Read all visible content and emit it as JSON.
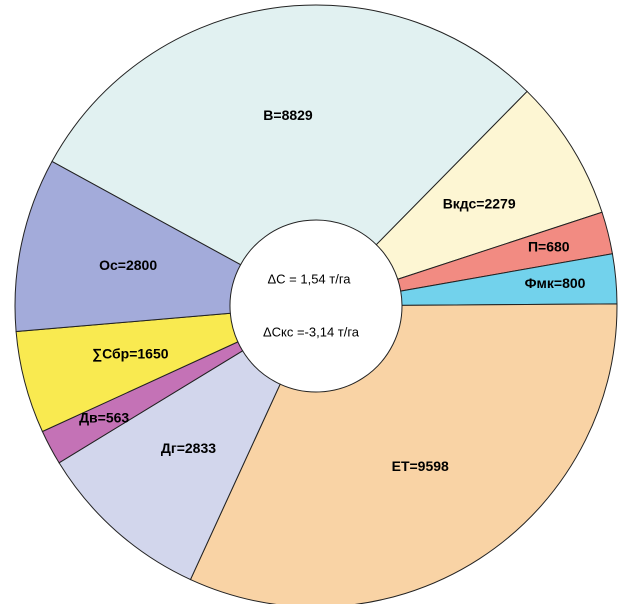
{
  "chart_data": {
    "type": "donut",
    "values": [
      8829,
      2279,
      680,
      800,
      9598,
      2833,
      563,
      1650,
      2800
    ],
    "value_labels": [
      "В=8829",
      "Вкдс=2279",
      "П=680",
      "Фмк=800",
      "ЕТ=9598",
      "Дг=2833",
      "Дв=563",
      "∑Сбр=1650",
      "Ос=2800"
    ],
    "colors": [
      "#e1f1f1",
      "#fdf6d3",
      "#f28b82",
      "#72d2ec",
      "#f9d3a5",
      "#d2d6ec",
      "#c472b6",
      "#f9ea50",
      "#a3abda"
    ],
    "annotations": [
      "ΔС = 1,54 т/га",
      "ΔСкс =-3,14 т/га"
    ]
  }
}
